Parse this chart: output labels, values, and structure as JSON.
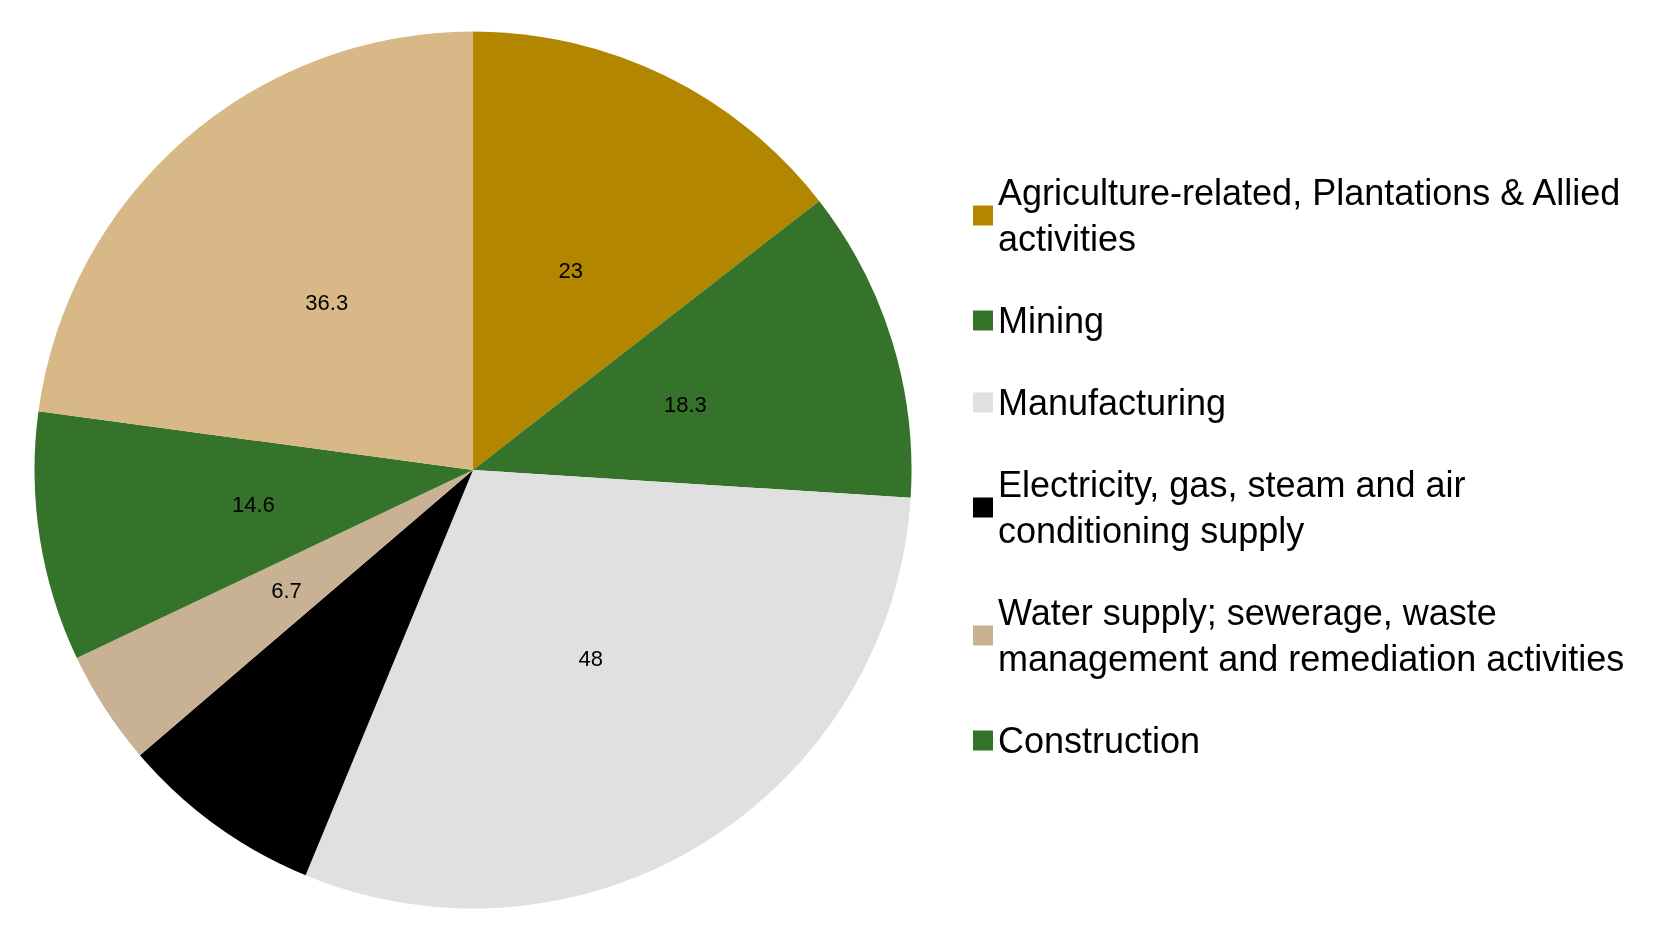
{
  "chart_data": {
    "type": "pie",
    "categories": [
      "Agriculture-related, Plantations & Allied activities",
      "Mining",
      "Manufacturing",
      "Electricity, gas, steam and air conditioning supply",
      "Water supply; sewerage, waste management and remediation activities",
      "Construction",
      null
    ],
    "values": [
      23,
      18.3,
      48,
      11.9,
      6.7,
      14.6,
      36.3
    ],
    "value_labels": [
      "23",
      "18.3",
      "48",
      null,
      "6.7",
      "14.6",
      "36.3"
    ],
    "colors": [
      "#b38600",
      "#35732a",
      "#e0e0e0",
      "#000000",
      "#c8b293",
      "#35732a",
      "#d8b886"
    ],
    "legend": "right"
  }
}
